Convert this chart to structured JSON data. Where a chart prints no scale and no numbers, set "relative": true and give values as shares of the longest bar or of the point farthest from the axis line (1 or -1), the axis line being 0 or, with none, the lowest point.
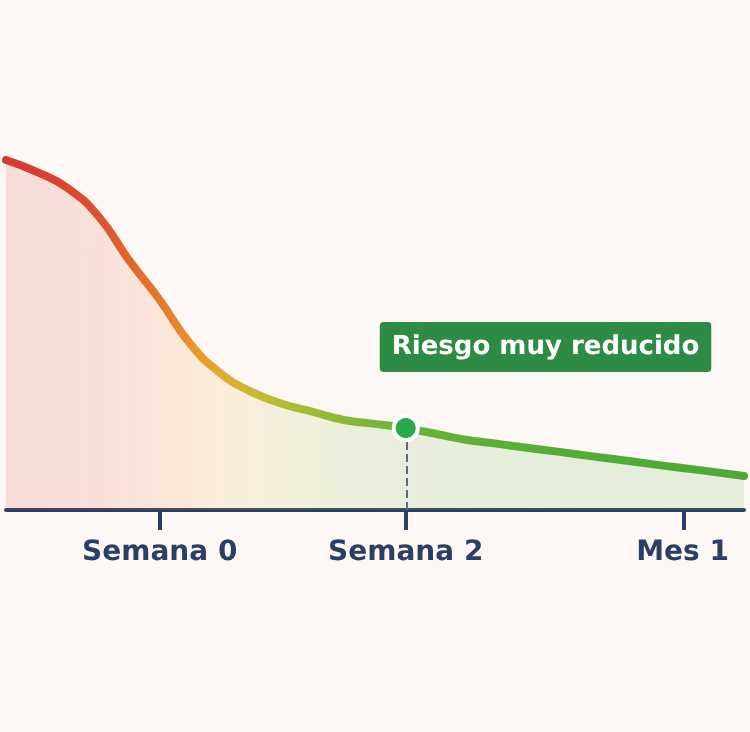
{
  "chart_data": {
    "type": "area",
    "relative": true,
    "categories": [
      null,
      null,
      null,
      null,
      null,
      "Semana 0",
      null,
      null,
      null,
      null,
      null,
      null,
      null,
      "Semana 2",
      null,
      null,
      null,
      null,
      null,
      null,
      null,
      null,
      "Mes 1",
      null,
      null
    ],
    "values": [
      1.0,
      0.966,
      0.92,
      0.84,
      0.714,
      0.6,
      0.474,
      0.389,
      0.337,
      0.303,
      0.28,
      0.257,
      0.246,
      0.234,
      0.217,
      0.2,
      0.189,
      0.177,
      0.166,
      0.154,
      0.143,
      0.131,
      0.12,
      0.109,
      0.097
    ],
    "colors": [
      "#d63b2f",
      "#d83f2f",
      "#db462e",
      "#de522d",
      "#e2652c",
      "#e6782b",
      "#ea922a",
      "#e6aa2c",
      "#cdb832",
      "#b3bd34",
      "#9dbc36",
      "#88b937",
      "#78b638",
      "#6cb439",
      "#64b238",
      "#5fb138",
      "#5baf37",
      "#58ae36",
      "#56ad36",
      "#54ac35",
      "#52ab35",
      "#51aa35",
      "#50a934",
      "#4fa934",
      "#4ea834"
    ],
    "annotations": [
      {
        "text": "Riesgo muy reducido",
        "x": "Semana 2",
        "y": 0.234
      }
    ],
    "ref_lines": [
      {
        "axis": "x",
        "value": "Semana 2",
        "color": "#5a6b88",
        "line_style": "dashed"
      }
    ],
    "grid": false,
    "marker": "none",
    "line_style": "solid"
  }
}
